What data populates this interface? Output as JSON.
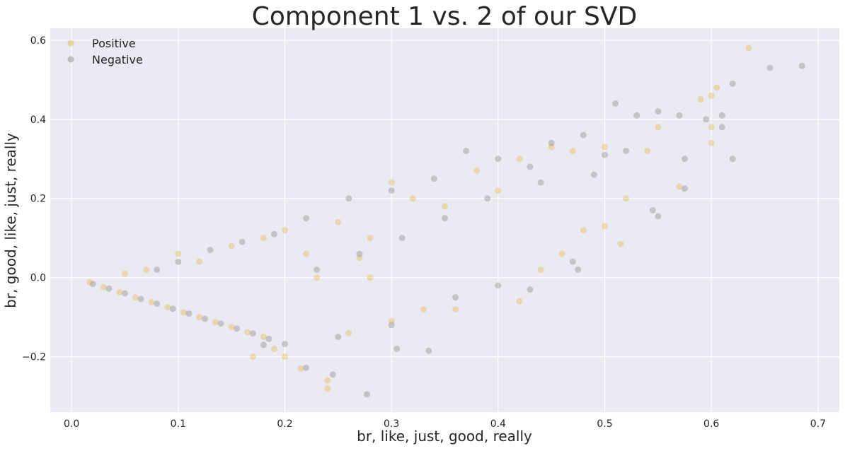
{
  "chart_data": {
    "type": "scatter",
    "title": "Component 1 vs. 2 of our SVD",
    "xlabel": "br, like, just, good, really",
    "ylabel": "br, good, like, just, really",
    "xlim": [
      -0.02,
      0.72
    ],
    "ylim": [
      -0.34,
      0.63
    ],
    "xticks": [
      0.0,
      0.1,
      0.2,
      0.3,
      0.4,
      0.5,
      0.6,
      0.7
    ],
    "xtick_labels": [
      "0.0",
      "0.1",
      "0.2",
      "0.3",
      "0.4",
      "0.5",
      "0.6",
      "0.7"
    ],
    "yticks": [
      -0.2,
      0.0,
      0.2,
      0.4,
      0.6
    ],
    "ytick_labels": [
      "−0.2",
      "0.0",
      "0.2",
      "0.4",
      "0.6"
    ],
    "grid": true,
    "background": "#eaeaf2",
    "legend_position": "top-left",
    "series": [
      {
        "name": "Positive",
        "color": "#e8b84a",
        "points": [
          [
            0.017,
            -0.012
          ],
          [
            0.03,
            -0.024
          ],
          [
            0.045,
            -0.037
          ],
          [
            0.06,
            -0.05
          ],
          [
            0.075,
            -0.062
          ],
          [
            0.09,
            -0.075
          ],
          [
            0.105,
            -0.088
          ],
          [
            0.12,
            -0.1
          ],
          [
            0.135,
            -0.113
          ],
          [
            0.15,
            -0.125
          ],
          [
            0.165,
            -0.138
          ],
          [
            0.18,
            -0.15
          ],
          [
            0.2,
            -0.2
          ],
          [
            0.215,
            -0.23
          ],
          [
            0.24,
            -0.26
          ],
          [
            0.24,
            -0.28
          ],
          [
            0.05,
            0.01
          ],
          [
            0.07,
            0.02
          ],
          [
            0.1,
            0.06
          ],
          [
            0.12,
            0.04
          ],
          [
            0.15,
            0.08
          ],
          [
            0.18,
            0.1
          ],
          [
            0.2,
            0.12
          ],
          [
            0.22,
            0.06
          ],
          [
            0.25,
            0.14
          ],
          [
            0.28,
            0.1
          ],
          [
            0.3,
            0.24
          ],
          [
            0.32,
            0.2
          ],
          [
            0.35,
            0.18
          ],
          [
            0.38,
            0.27
          ],
          [
            0.4,
            0.22
          ],
          [
            0.42,
            0.3
          ],
          [
            0.45,
            0.33
          ],
          [
            0.47,
            0.32
          ],
          [
            0.5,
            0.33
          ],
          [
            0.52,
            0.2
          ],
          [
            0.54,
            0.32
          ],
          [
            0.55,
            0.38
          ],
          [
            0.57,
            0.23
          ],
          [
            0.59,
            0.45
          ],
          [
            0.6,
            0.46
          ],
          [
            0.6,
            0.34
          ],
          [
            0.6,
            0.38
          ],
          [
            0.605,
            0.48
          ],
          [
            0.635,
            0.58
          ],
          [
            0.26,
            -0.14
          ],
          [
            0.3,
            -0.11
          ],
          [
            0.33,
            -0.08
          ],
          [
            0.36,
            -0.08
          ],
          [
            0.42,
            -0.06
          ],
          [
            0.5,
            0.13
          ],
          [
            0.515,
            0.085
          ],
          [
            0.46,
            0.06
          ],
          [
            0.44,
            0.02
          ],
          [
            0.48,
            0.12
          ],
          [
            0.19,
            -0.18
          ],
          [
            0.17,
            -0.2
          ],
          [
            0.28,
            0.0
          ],
          [
            0.23,
            0.0
          ],
          [
            0.27,
            0.05
          ]
        ]
      },
      {
        "name": "Negative",
        "color": "#8a8a8a",
        "points": [
          [
            0.02,
            -0.016
          ],
          [
            0.035,
            -0.028
          ],
          [
            0.05,
            -0.04
          ],
          [
            0.065,
            -0.054
          ],
          [
            0.08,
            -0.066
          ],
          [
            0.095,
            -0.079
          ],
          [
            0.11,
            -0.091
          ],
          [
            0.125,
            -0.104
          ],
          [
            0.14,
            -0.116
          ],
          [
            0.155,
            -0.129
          ],
          [
            0.17,
            -0.141
          ],
          [
            0.185,
            -0.155
          ],
          [
            0.2,
            -0.168
          ],
          [
            0.22,
            -0.228
          ],
          [
            0.245,
            -0.245
          ],
          [
            0.277,
            -0.295
          ],
          [
            0.305,
            -0.18
          ],
          [
            0.335,
            -0.185
          ],
          [
            0.08,
            0.02
          ],
          [
            0.1,
            0.04
          ],
          [
            0.13,
            0.07
          ],
          [
            0.16,
            0.09
          ],
          [
            0.19,
            0.11
          ],
          [
            0.22,
            0.15
          ],
          [
            0.26,
            0.2
          ],
          [
            0.3,
            0.22
          ],
          [
            0.34,
            0.25
          ],
          [
            0.37,
            0.32
          ],
          [
            0.4,
            0.3
          ],
          [
            0.43,
            0.28
          ],
          [
            0.45,
            0.34
          ],
          [
            0.48,
            0.36
          ],
          [
            0.5,
            0.31
          ],
          [
            0.51,
            0.44
          ],
          [
            0.53,
            0.41
          ],
          [
            0.55,
            0.42
          ],
          [
            0.57,
            0.41
          ],
          [
            0.575,
            0.3
          ],
          [
            0.595,
            0.4
          ],
          [
            0.61,
            0.38
          ],
          [
            0.61,
            0.41
          ],
          [
            0.62,
            0.49
          ],
          [
            0.62,
            0.3
          ],
          [
            0.655,
            0.53
          ],
          [
            0.685,
            0.535
          ],
          [
            0.575,
            0.225
          ],
          [
            0.545,
            0.17
          ],
          [
            0.55,
            0.155
          ],
          [
            0.47,
            0.04
          ],
          [
            0.475,
            0.02
          ],
          [
            0.36,
            -0.05
          ],
          [
            0.4,
            -0.02
          ],
          [
            0.43,
            -0.03
          ],
          [
            0.3,
            -0.12
          ],
          [
            0.25,
            -0.15
          ],
          [
            0.18,
            -0.17
          ],
          [
            0.23,
            0.02
          ],
          [
            0.27,
            0.06
          ],
          [
            0.31,
            0.1
          ],
          [
            0.35,
            0.15
          ],
          [
            0.39,
            0.2
          ],
          [
            0.44,
            0.24
          ],
          [
            0.49,
            0.26
          ],
          [
            0.52,
            0.32
          ]
        ]
      }
    ]
  }
}
